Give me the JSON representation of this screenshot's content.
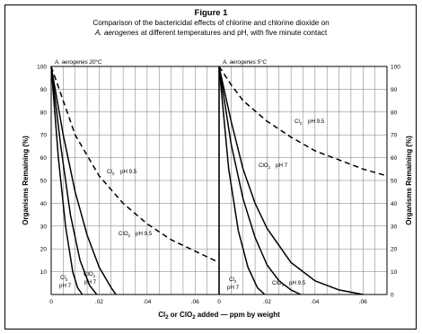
{
  "figure": {
    "title": "Figure 1",
    "subtitle_1": "Comparison of the bactericidal effects of chlorine and chlorine dioxide on",
    "subtitle_2": "A. aerogenes at different temperatures and pH, with five minute contact"
  },
  "chart_data": {
    "type": "line",
    "ylabel_left": "Organisms Remaining (%)",
    "ylabel_right": "Organisms Remaining (%)",
    "xlabel": "Cl2 or ClO2 added — ppm by weight",
    "y_ticks": [
      "10",
      "20",
      "30",
      "40",
      "50",
      "60",
      "70",
      "80",
      "90",
      "100"
    ],
    "y_zero_right": "0",
    "ylim": [
      0,
      100
    ],
    "grid": true,
    "panels": [
      {
        "name": "A. aerogenes  20°C",
        "xlim": [
          0,
          0.07
        ],
        "x_ticks": [
          "0",
          ".02",
          ".04",
          ".06"
        ],
        "series": [
          {
            "label": "Cl2 pH 9.5",
            "label_lines": [
              "Cl",
              "pH 9.5"
            ],
            "style": "dashed",
            "x": [
              0,
              0.005,
              0.01,
              0.02,
              0.03,
              0.04,
              0.05,
              0.06,
              0.07
            ],
            "y": [
              100,
              85,
              70,
              52,
              40,
              31,
              24,
              19,
              14
            ]
          },
          {
            "label": "ClO2 pH 9.5",
            "label_lines": [
              "ClO",
              "pH 9.5"
            ],
            "style": "solid",
            "x": [
              0,
              0.005,
              0.01,
              0.015,
              0.02,
              0.025,
              0.027
            ],
            "y": [
              100,
              70,
              45,
              26,
              12,
              3,
              0
            ]
          },
          {
            "label": "Cl2 pH 7",
            "label_lines": [
              "Cl",
              "pH 7"
            ],
            "style": "solid",
            "x": [
              0,
              0.003,
              0.006,
              0.009,
              0.011,
              0.013
            ],
            "y": [
              100,
              60,
              30,
              10,
              3,
              0
            ]
          },
          {
            "label": "ClO2 pH 7",
            "label_lines": [
              "ClO",
              "pH 7"
            ],
            "style": "solid",
            "x": [
              0,
              0.004,
              0.008,
              0.012,
              0.016,
              0.019
            ],
            "y": [
              100,
              65,
              35,
              15,
              4,
              0
            ]
          }
        ]
      },
      {
        "name": "A. aerogenes  5°C",
        "xlim": [
          0,
          0.07
        ],
        "x_ticks": [
          "0",
          ".02",
          ".04",
          ".06"
        ],
        "series": [
          {
            "label": "Cl2 pH 9.5",
            "label_lines": [
              "Cl",
              "pH 9.5"
            ],
            "style": "dashed",
            "x": [
              0,
              0.005,
              0.01,
              0.02,
              0.03,
              0.04,
              0.05,
              0.06,
              0.07
            ],
            "y": [
              100,
              92,
              85,
              76,
              69,
              63,
              59,
              55,
              52
            ]
          },
          {
            "label": "ClO2 pH 7",
            "label_lines": [
              "ClO",
              "pH 7"
            ],
            "style": "solid",
            "x": [
              0,
              0.005,
              0.01,
              0.015,
              0.02,
              0.03,
              0.04,
              0.05,
              0.06
            ],
            "y": [
              100,
              76,
              55,
              40,
              29,
              14,
              6,
              2,
              0
            ]
          },
          {
            "label": "ClO2 pH 9.5",
            "label_lines": [
              "ClO",
              "pH 9.5"
            ],
            "style": "solid",
            "x": [
              0,
              0.005,
              0.01,
              0.015,
              0.02,
              0.025,
              0.03,
              0.034
            ],
            "y": [
              100,
              66,
              42,
              25,
              13,
              6,
              2,
              0
            ]
          },
          {
            "label": "Cl2 pH 7",
            "label_lines": [
              "Cl",
              "pH 7"
            ],
            "style": "solid",
            "x": [
              0,
              0.004,
              0.008,
              0.012,
              0.016,
              0.019
            ],
            "y": [
              100,
              55,
              28,
              12,
              3,
              0
            ]
          }
        ]
      }
    ]
  }
}
